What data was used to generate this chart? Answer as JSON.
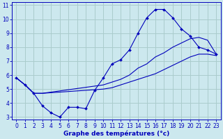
{
  "title": "Graphe des températures (°c)",
  "bg_color": "#cce8ee",
  "grid_color": "#aacccc",
  "line_color": "#0000bb",
  "xlim": [
    -0.5,
    23.5
  ],
  "ylim": [
    2.8,
    11.2
  ],
  "xticks": [
    0,
    1,
    2,
    3,
    4,
    5,
    6,
    7,
    8,
    9,
    10,
    11,
    12,
    13,
    14,
    15,
    16,
    17,
    18,
    19,
    20,
    21,
    22,
    23
  ],
  "yticks": [
    3,
    4,
    5,
    6,
    7,
    8,
    9,
    10,
    11
  ],
  "line1_x": [
    0,
    1,
    2,
    3,
    4,
    5,
    6,
    7,
    8,
    9,
    10,
    11,
    12,
    13,
    14,
    15,
    16,
    17,
    18,
    19,
    20,
    21,
    22,
    23
  ],
  "line1_y": [
    5.8,
    5.3,
    4.7,
    3.8,
    3.3,
    3.0,
    3.7,
    3.7,
    3.6,
    4.9,
    5.8,
    6.8,
    7.1,
    7.8,
    9.0,
    10.1,
    10.7,
    10.7,
    10.1,
    9.3,
    8.8,
    8.0,
    7.8,
    7.5
  ],
  "line2_x": [
    0,
    1,
    2,
    3,
    10,
    11,
    12,
    13,
    14,
    15,
    16,
    17,
    18,
    19,
    20,
    21,
    22,
    23
  ],
  "line2_y": [
    5.8,
    5.3,
    4.7,
    4.7,
    5.3,
    5.5,
    5.7,
    6.0,
    6.5,
    6.8,
    7.3,
    7.6,
    8.0,
    8.3,
    8.6,
    8.7,
    8.5,
    7.5
  ],
  "line3_x": [
    0,
    1,
    2,
    3,
    10,
    11,
    12,
    13,
    14,
    15,
    16,
    17,
    18,
    19,
    20,
    21,
    22,
    23
  ],
  "line3_y": [
    5.8,
    5.3,
    4.7,
    4.7,
    5.0,
    5.1,
    5.3,
    5.5,
    5.7,
    5.9,
    6.1,
    6.4,
    6.7,
    7.0,
    7.3,
    7.5,
    7.5,
    7.4
  ]
}
